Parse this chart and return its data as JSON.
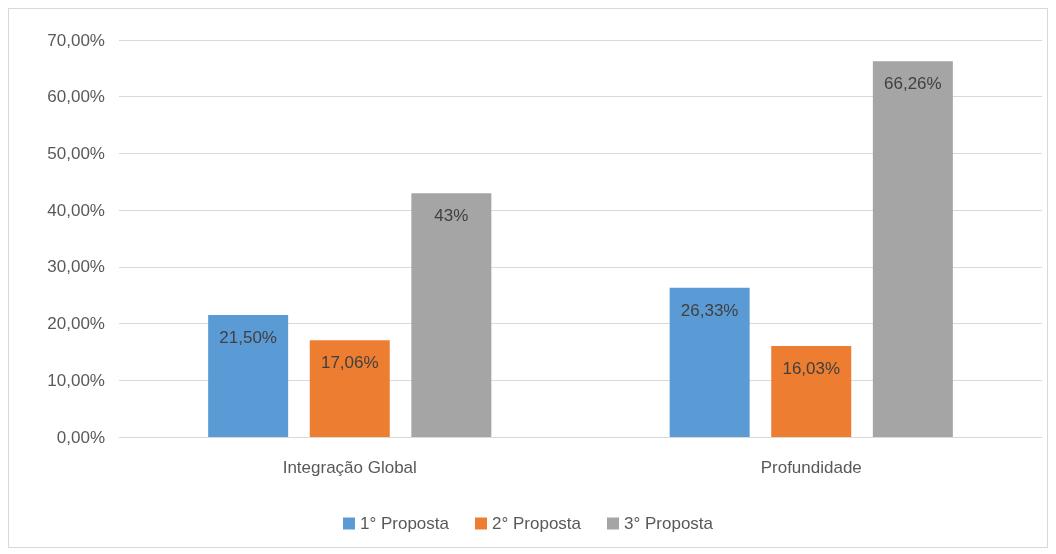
{
  "chart_data": {
    "type": "bar",
    "categories": [
      "Integração Global",
      "Profundidade"
    ],
    "series": [
      {
        "name": "1° Proposta",
        "color": "#5b9bd5",
        "values": [
          21.5,
          26.33
        ],
        "value_labels": [
          "21,50%",
          "26,33%"
        ]
      },
      {
        "name": "2° Proposta",
        "color": "#ed7d31",
        "values": [
          17.06,
          16.03
        ],
        "value_labels": [
          "17,06%",
          "16,03%"
        ]
      },
      {
        "name": "3° Proposta",
        "color": "#a5a5a5",
        "values": [
          43,
          66.26
        ],
        "value_labels": [
          "43%",
          "66,26%"
        ]
      }
    ],
    "ylim": [
      0,
      70
    ],
    "yticks": [
      {
        "value": 0,
        "label": "0,00%"
      },
      {
        "value": 10,
        "label": "10,00%"
      },
      {
        "value": 20,
        "label": "20,00%"
      },
      {
        "value": 30,
        "label": "30,00%"
      },
      {
        "value": 40,
        "label": "40,00%"
      },
      {
        "value": 50,
        "label": "50,00%"
      },
      {
        "value": 60,
        "label": "60,00%"
      },
      {
        "value": 70,
        "label": "70,00%"
      }
    ],
    "grid": "y",
    "legend": "bottom"
  }
}
